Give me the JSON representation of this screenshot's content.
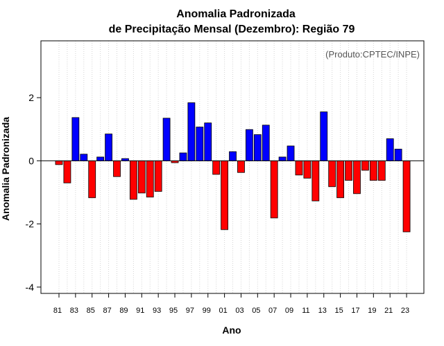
{
  "chart_data": {
    "type": "bar",
    "title": "Anomalia Padronizada",
    "subtitle": "de Precipitação Mensal (Dezembro): Região 79",
    "source": "(Produto:CPTEC/INPE)",
    "xlabel": "Ano",
    "ylabel": "Anomalia Padronizada",
    "ylim": [
      -4.2,
      3.8
    ],
    "yticks": [
      -4,
      -2,
      0,
      2
    ],
    "grid": "vertical dotted",
    "colors": {
      "positive": "#0000ff",
      "negative": "#ff0000"
    },
    "categories": [
      "81",
      "82",
      "83",
      "84",
      "85",
      "86",
      "87",
      "88",
      "89",
      "90",
      "91",
      "92",
      "93",
      "94",
      "95",
      "96",
      "97",
      "98",
      "99",
      "00",
      "01",
      "02",
      "03",
      "04",
      "05",
      "06",
      "07",
      "08",
      "09",
      "10",
      "11",
      "12",
      "13",
      "14",
      "15",
      "16",
      "17",
      "18",
      "19",
      "20",
      "21",
      "22",
      "23"
    ],
    "xtick_labels": [
      "81",
      "83",
      "85",
      "87",
      "89",
      "91",
      "93",
      "95",
      "97",
      "99",
      "01",
      "03",
      "05",
      "07",
      "09",
      "11",
      "13",
      "15",
      "17",
      "19",
      "21",
      "23"
    ],
    "values": [
      -0.12,
      -0.7,
      1.37,
      0.21,
      -1.17,
      0.12,
      0.85,
      -0.5,
      0.07,
      -1.22,
      -1.02,
      -1.15,
      -0.97,
      1.35,
      -0.06,
      0.25,
      1.84,
      1.07,
      1.2,
      -0.43,
      -2.18,
      0.29,
      -0.37,
      0.99,
      0.83,
      1.13,
      -1.81,
      0.12,
      0.47,
      -0.45,
      -0.55,
      -1.27,
      1.55,
      -0.82,
      -1.17,
      -0.62,
      -1.04,
      -0.3,
      -0.62,
      -0.62,
      0.7,
      0.37,
      -2.25
    ]
  }
}
